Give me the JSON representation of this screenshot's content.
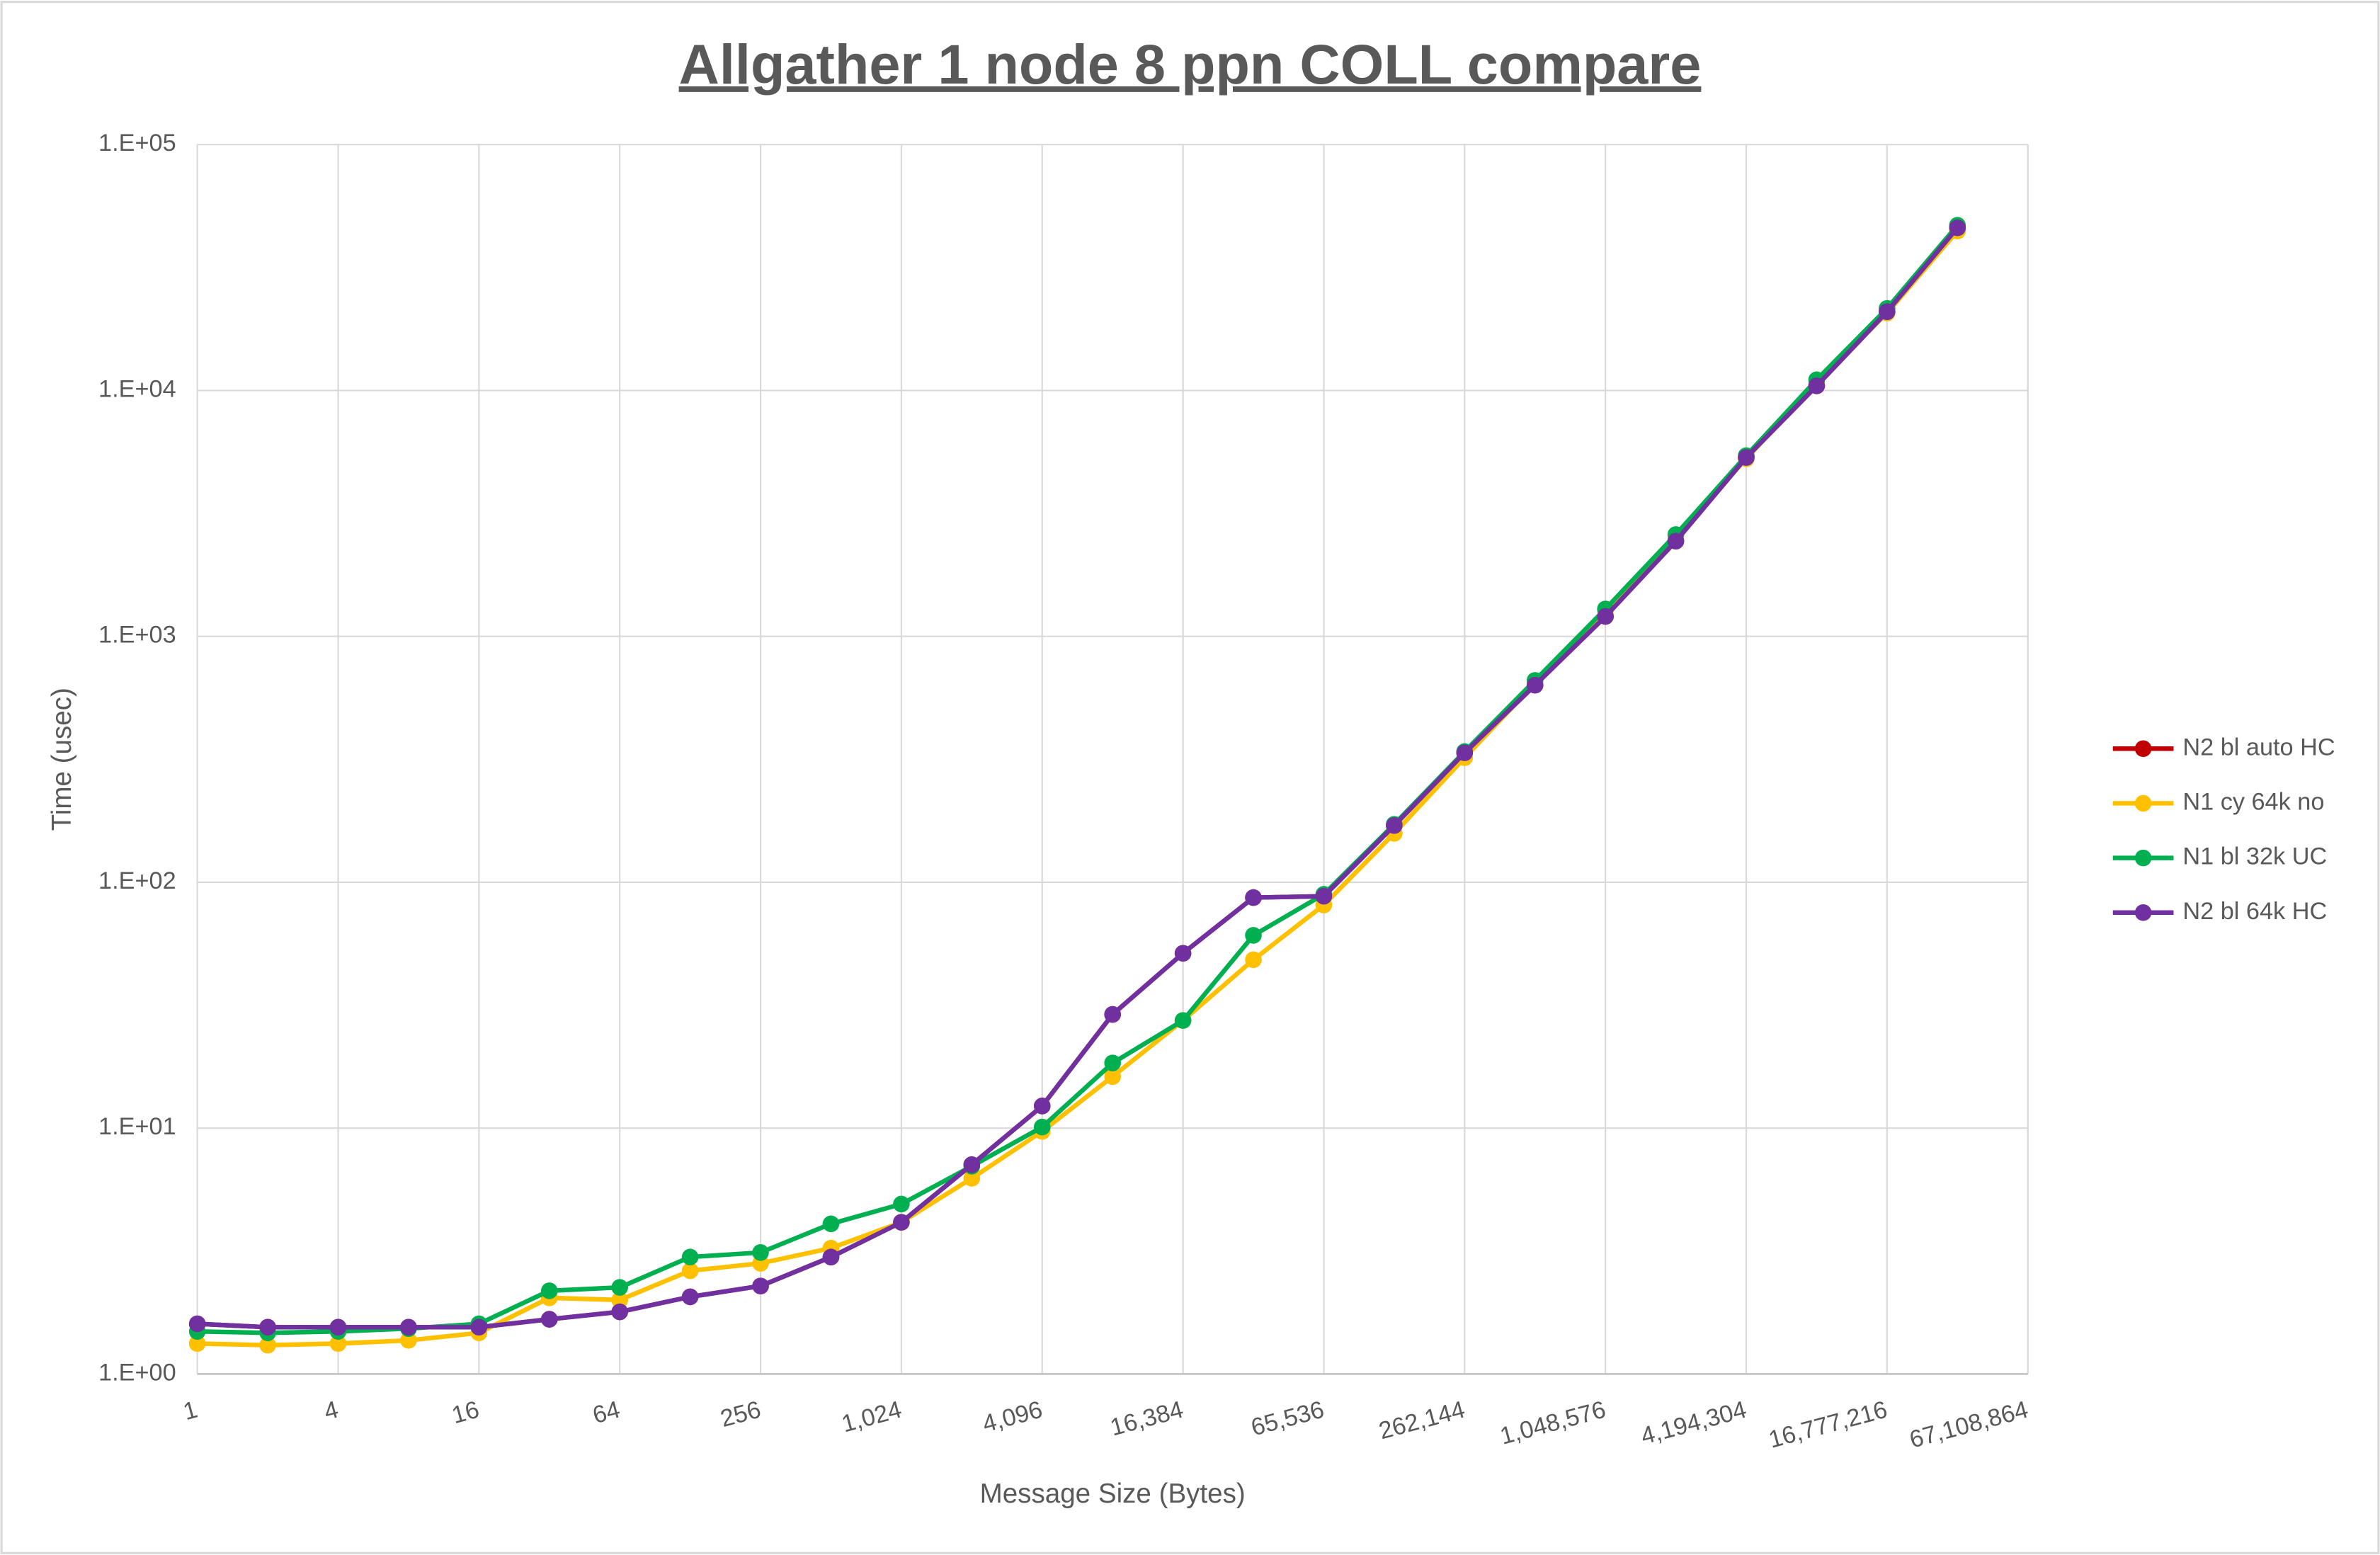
{
  "chart_data": {
    "type": "line",
    "title": "Allgather 1 node 8 ppn COLL compare",
    "x_label": "Message Size (Bytes)",
    "y_label": "Time (usec)",
    "xscale": "log2",
    "yscale": "log10",
    "grid": true,
    "legend": "right",
    "x": [
      1,
      2,
      4,
      8,
      16,
      32,
      64,
      128,
      256,
      512,
      1024,
      2048,
      4096,
      8192,
      16384,
      32768,
      65536,
      131072,
      262144,
      524288,
      1048576,
      2097152,
      4194304,
      8388608,
      16777216,
      33554432
    ],
    "xlim": [
      1,
      67108864
    ],
    "xticks": [
      1,
      4,
      16,
      64,
      256,
      {
        "value": 1024,
        "label": "1,024"
      },
      {
        "value": 4096,
        "label": "4,096"
      },
      {
        "value": 16384,
        "label": "16,384"
      },
      {
        "value": 65536,
        "label": "65,536"
      },
      {
        "value": 262144,
        "label": "262,144"
      },
      {
        "value": 1048576,
        "label": "1,048,576"
      },
      {
        "value": 4194304,
        "label": "4,194,304"
      },
      {
        "value": 16777216,
        "label": "16,777,216"
      },
      {
        "value": 67108864,
        "label": "67,108,864"
      }
    ],
    "ylim": [
      1,
      100000
    ],
    "yticks": [
      {
        "value": 1,
        "label": "1.E+00"
      },
      {
        "value": 10,
        "label": "1.E+01"
      },
      {
        "value": 100,
        "label": "1.E+02"
      },
      {
        "value": 1000,
        "label": "1.E+03"
      },
      {
        "value": 10000,
        "label": "1.E+04"
      },
      {
        "value": 100000,
        "label": "1.E+05"
      }
    ],
    "series": [
      {
        "name": "N2 bl auto HC",
        "color": "#c00000",
        "values": [
          1.6,
          1.55,
          1.55,
          1.55,
          1.55,
          1.67,
          1.79,
          2.06,
          2.28,
          2.99,
          4.14,
          7.1,
          12.3,
          29.0,
          51.4,
          86.6,
          87.7,
          170,
          336,
          633,
          1205,
          2439,
          5337,
          10440,
          20900,
          45860
        ]
      },
      {
        "name": "N1 cy 64k no",
        "color": "#ffc000",
        "values": [
          1.33,
          1.31,
          1.33,
          1.37,
          1.47,
          2.04,
          2.0,
          2.63,
          2.82,
          3.25,
          4.14,
          6.25,
          9.7,
          16.2,
          27.4,
          48.4,
          80.8,
          158,
          321,
          644,
          1274,
          2555,
          5276,
          10740,
          20650,
          44500
        ]
      },
      {
        "name": "N1 bl 32k UC",
        "color": "#00b050",
        "values": [
          1.49,
          1.47,
          1.49,
          1.53,
          1.6,
          2.18,
          2.25,
          2.99,
          3.12,
          4.08,
          4.91,
          7.0,
          10.1,
          18.4,
          27.4,
          60.8,
          89.3,
          172,
          340,
          662,
          1292,
          2594,
          5430,
          11050,
          21550,
          46960
        ]
      },
      {
        "name": "N2 bl 64k HC",
        "color": "#7030a0",
        "values": [
          1.6,
          1.55,
          1.55,
          1.55,
          1.55,
          1.67,
          1.79,
          2.06,
          2.28,
          2.99,
          4.14,
          7.1,
          12.3,
          29.0,
          51.4,
          86.6,
          87.7,
          170,
          336,
          633,
          1205,
          2439,
          5337,
          10440,
          20900,
          45860
        ]
      }
    ]
  }
}
